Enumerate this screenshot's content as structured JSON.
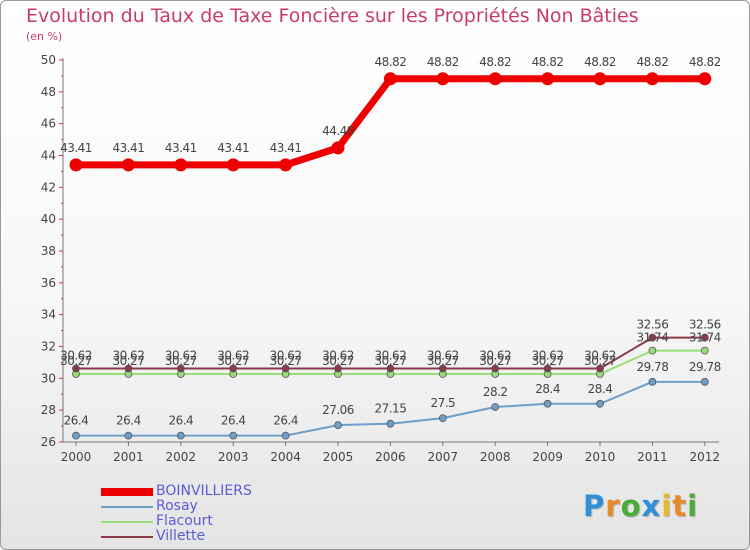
{
  "header": {
    "title": "Evolution du Taux de Taxe Foncière sur les Propriétés Non Bâties",
    "unit": "(en %)"
  },
  "chart_data": {
    "type": "line",
    "title": "Evolution du Taux de Taxe Foncière sur les Propriétés Non Bâties",
    "ylabel": "(en %)",
    "xlabel": "",
    "x": [
      "2000",
      "2001",
      "2002",
      "2003",
      "2004",
      "2005",
      "2006",
      "2007",
      "2008",
      "2009",
      "2010",
      "2011",
      "2012"
    ],
    "ylim": [
      26,
      50
    ],
    "yticks": [
      26,
      28,
      30,
      32,
      34,
      36,
      38,
      40,
      42,
      44,
      46,
      48,
      50
    ],
    "grid": false,
    "legend_position": "bottom-left",
    "series": [
      {
        "name": "BOINVILLIERS",
        "color": "#ee0000",
        "values": [
          43.41,
          43.41,
          43.41,
          43.41,
          43.41,
          44.48,
          48.82,
          48.82,
          48.82,
          48.82,
          48.82,
          48.82,
          48.82
        ],
        "labels": [
          "43.41",
          "43.41",
          "43.41",
          "43.41",
          "43.41",
          "44.48",
          "48.82",
          "48.82",
          "48.82",
          "48.82",
          "48.82",
          "48.82",
          "48.82"
        ]
      },
      {
        "name": "Rosay",
        "color": "#6e9fc9",
        "values": [
          26.4,
          26.4,
          26.4,
          26.4,
          26.4,
          27.06,
          27.15,
          27.5,
          28.2,
          28.4,
          28.4,
          29.78,
          29.78
        ],
        "labels": [
          "26.4",
          "26.4",
          "26.4",
          "26.4",
          "26.4",
          "27.06",
          "27.15",
          "27.5",
          "28.2",
          "28.4",
          "28.4",
          "29.78",
          "29.78"
        ]
      },
      {
        "name": "Flacourt",
        "color": "#99dd77",
        "values": [
          30.27,
          30.27,
          30.27,
          30.27,
          30.27,
          30.27,
          30.27,
          30.27,
          30.27,
          30.27,
          30.27,
          31.74,
          31.74
        ],
        "labels": [
          "30.27",
          "30.27",
          "30.27",
          "30.27",
          "30.27",
          "30.27",
          "30.27",
          "30.27",
          "30.27",
          "30.27",
          "30.27",
          "31.74",
          "31.74"
        ]
      },
      {
        "name": "Villette",
        "color": "#8b3a4a",
        "values": [
          30.62,
          30.62,
          30.62,
          30.62,
          30.62,
          30.62,
          30.62,
          30.62,
          30.62,
          30.62,
          30.62,
          32.56,
          32.56
        ],
        "labels": [
          "30.62",
          "30.62",
          "30.62",
          "30.62",
          "30.62",
          "30.62",
          "30.62",
          "30.62",
          "30.62",
          "30.62",
          "30.62",
          "32.56",
          "32.56"
        ]
      }
    ]
  },
  "logo": {
    "letters": [
      "P",
      "r",
      "o",
      "x",
      "i",
      "t",
      "i"
    ],
    "colors": [
      "#2f8fd8",
      "#e8892a",
      "#4aaa3a",
      "#2f8fd8",
      "#e8b92a",
      "#e8892a",
      "#4aaa3a"
    ]
  }
}
